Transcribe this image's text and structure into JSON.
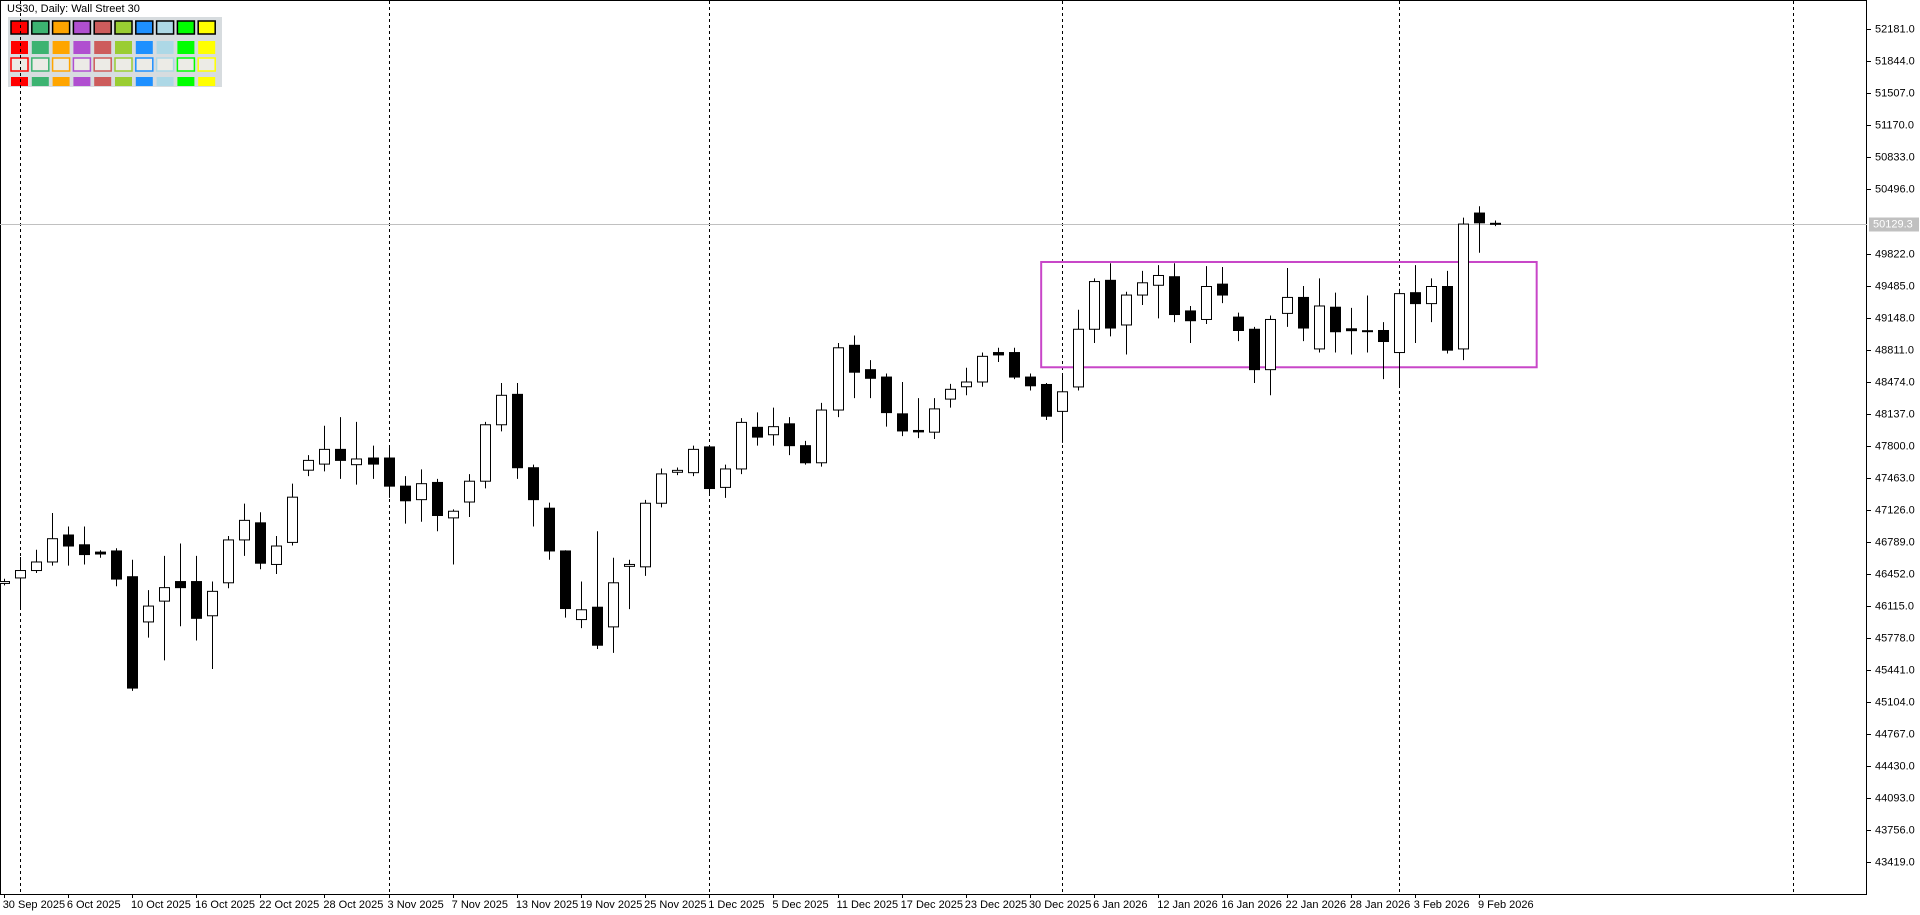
{
  "chart_data": {
    "type": "candlestick",
    "title": "US30, Daily:  Wall Street 30",
    "categories": [
      "30 Sep 2025",
      null,
      null,
      null,
      "6 Oct 2025",
      null,
      null,
      null,
      "10 Oct 2025",
      null,
      null,
      null,
      "16 Oct 2025",
      null,
      null,
      null,
      "22 Oct 2025",
      null,
      null,
      null,
      "28 Oct 2025",
      null,
      null,
      null,
      "3 Nov 2025",
      null,
      null,
      null,
      "7 Nov 2025",
      null,
      null,
      null,
      "13 Nov 2025",
      null,
      null,
      null,
      "19 Nov 2025",
      null,
      null,
      null,
      "25 Nov 2025",
      null,
      null,
      null,
      "1 Dec 2025",
      null,
      null,
      null,
      "5 Dec 2025",
      null,
      null,
      null,
      "11 Dec 2025",
      null,
      null,
      null,
      "17 Dec 2025",
      null,
      null,
      null,
      "23 Dec 2025",
      null,
      null,
      null,
      "30 Dec 2025",
      null,
      null,
      null,
      "6 Jan 2026",
      null,
      null,
      null,
      "12 Jan 2026",
      null,
      null,
      null,
      "16 Jan 2026",
      null,
      null,
      null,
      "22 Jan 2026",
      null,
      null,
      null,
      "28 Jan 2026",
      null,
      null,
      null,
      "3 Feb 2026",
      null,
      null,
      null,
      "9 Feb 2026",
      null
    ],
    "open": [
      46350,
      46408,
      46486,
      46576,
      46860,
      46757,
      46680,
      46692,
      46421,
      45945,
      46164,
      46370,
      46370,
      46010,
      46357,
      46808,
      46988,
      46550,
      46782,
      47542,
      47606,
      47761,
      47600,
      47670,
      47670,
      47374,
      47232,
      47413,
      47040,
      47207,
      47426,
      48020,
      48340,
      47568,
      47142,
      46692,
      45970,
      46100,
      45893,
      46530,
      46525,
      47194,
      47520,
      47516,
      47787,
      47361,
      47555,
      47993,
      47915,
      48030,
      47800,
      47620,
      48175,
      48856,
      48600,
      48522,
      48135,
      47960,
      47942,
      48290,
      48420,
      48470,
      48780,
      48780,
      48522,
      48444,
      48161,
      48418,
      49025,
      49540,
      49070,
      49385,
      49488,
      49578,
      49218,
      49128,
      49500,
      49153,
      49025,
      48600,
      49192,
      49360,
      48818,
      49257,
      49030,
      49010,
      49012,
      48780,
      49410,
      49295,
      49475,
      48818,
      50248,
      50140
    ],
    "high": [
      46400,
      46628,
      46705,
      47091,
      46950,
      46950,
      46700,
      46720,
      46600,
      46280,
      46640,
      46770,
      46640,
      46370,
      46850,
      47190,
      47100,
      46850,
      47400,
      47700,
      48010,
      48100,
      48050,
      47800,
      47800,
      47480,
      47550,
      47450,
      47130,
      47500,
      48050,
      48460,
      48460,
      47600,
      47200,
      46700,
      46370,
      46900,
      46620,
      46600,
      47230,
      47560,
      47570,
      47800,
      47800,
      47600,
      48090,
      48150,
      48200,
      48100,
      47850,
      48250,
      48880,
      48960,
      48700,
      48560,
      48470,
      48300,
      48300,
      48450,
      48620,
      48780,
      48830,
      48830,
      48560,
      48460,
      48560,
      49230,
      49560,
      49720,
      49420,
      49640,
      49700,
      49720,
      49270,
      49690,
      49680,
      49200,
      49050,
      49170,
      49670,
      49480,
      49560,
      49410,
      49250,
      49380,
      49100,
      49450,
      49700,
      49560,
      49640,
      50200,
      50320,
      50170
    ],
    "low": [
      46330,
      46073,
      46460,
      46538,
      46538,
      46550,
      46620,
      46320,
      45220,
      45780,
      45540,
      45900,
      45750,
      45450,
      46300,
      46640,
      46500,
      46450,
      46750,
      47480,
      47530,
      47450,
      47390,
      47450,
      47250,
      46980,
      47000,
      46900,
      46550,
      47050,
      47350,
      47950,
      47450,
      46950,
      46600,
      45990,
      45880,
      45660,
      45620,
      46080,
      46430,
      47150,
      47490,
      47480,
      47280,
      47250,
      47500,
      47800,
      47800,
      47700,
      47600,
      47580,
      48100,
      48300,
      48300,
      48000,
      47900,
      47880,
      47870,
      48200,
      48330,
      48420,
      48680,
      48500,
      48380,
      48070,
      47830,
      48380,
      48880,
      48950,
      48760,
      49280,
      49140,
      49100,
      48880,
      49080,
      49300,
      48900,
      48460,
      48330,
      49050,
      48900,
      48780,
      48780,
      48760,
      48780,
      48500,
      48420,
      48880,
      49100,
      48770,
      48700,
      49830,
      50110
    ],
    "close": [
      46370,
      46486,
      46576,
      46821,
      46744,
      46654,
      46660,
      46396,
      45249,
      46112,
      46306,
      46306,
      45983,
      46267,
      46808,
      47014,
      46563,
      46744,
      47258,
      47645,
      47761,
      47645,
      47660,
      47606,
      47374,
      47220,
      47400,
      47065,
      47110,
      47426,
      48020,
      48330,
      47568,
      47232,
      46692,
      46086,
      46073,
      45700,
      46357,
      46550,
      47194,
      47503,
      47540,
      47761,
      47349,
      47555,
      48045,
      47890,
      48000,
      47800,
      47620,
      48175,
      48830,
      48573,
      48509,
      48148,
      47955,
      47945,
      48187,
      48393,
      48470,
      48740,
      48755,
      48522,
      48430,
      48110,
      48367,
      49025,
      49527,
      49038,
      49385,
      49514,
      49591,
      49180,
      49115,
      49475,
      49385,
      49012,
      48600,
      49128,
      49360,
      49038,
      49270,
      48999,
      49010,
      49000,
      48896,
      49400,
      49295,
      49475,
      48805,
      50132,
      50145,
      50129.3
    ],
    "up_color": "#ffffff",
    "down_color": "#000000",
    "xlim": [
      -0.23,
      116.2
    ],
    "ylim": [
      43082,
      52490
    ],
    "yticks": [
      {
        "value": 43419,
        "label": "43419.0"
      },
      {
        "value": 43756,
        "label": "43756.0"
      },
      {
        "value": 44093,
        "label": "44093.0"
      },
      {
        "value": 44430,
        "label": "44430.0"
      },
      {
        "value": 44767,
        "label": "44767.0"
      },
      {
        "value": 45104,
        "label": "45104.0"
      },
      {
        "value": 45441,
        "label": "45441.0"
      },
      {
        "value": 45778,
        "label": "45778.0"
      },
      {
        "value": 46115,
        "label": "46115.0"
      },
      {
        "value": 46452,
        "label": "46452.0"
      },
      {
        "value": 46789,
        "label": "46789.0"
      },
      {
        "value": 47126,
        "label": "47126.0"
      },
      {
        "value": 47463,
        "label": "47463.0"
      },
      {
        "value": 47800,
        "label": "47800.0"
      },
      {
        "value": 48137,
        "label": "48137.0"
      },
      {
        "value": 48474,
        "label": "48474.0"
      },
      {
        "value": 48811,
        "label": "48811.0"
      },
      {
        "value": 49148,
        "label": "49148.0"
      },
      {
        "value": 49485,
        "label": "49485.0"
      },
      {
        "value": 49822,
        "label": "49822.0"
      },
      {
        "value": 50496,
        "label": "50496.0"
      },
      {
        "value": 50833,
        "label": "50833.0"
      },
      {
        "value": 51170,
        "label": "51170.0"
      },
      {
        "value": 51507,
        "label": "51507.0"
      },
      {
        "value": 51844,
        "label": "51844.0"
      },
      {
        "value": 52181,
        "label": "52181.0"
      }
    ],
    "last_price": 50129.3,
    "separators": [
      1,
      24,
      44,
      66,
      87,
      111.6
    ],
    "rectangle": {
      "x": [
        64.7,
        95.6
      ],
      "y": [
        48625,
        49733
      ],
      "color": "#c846c8"
    },
    "grid": false
  }
}
